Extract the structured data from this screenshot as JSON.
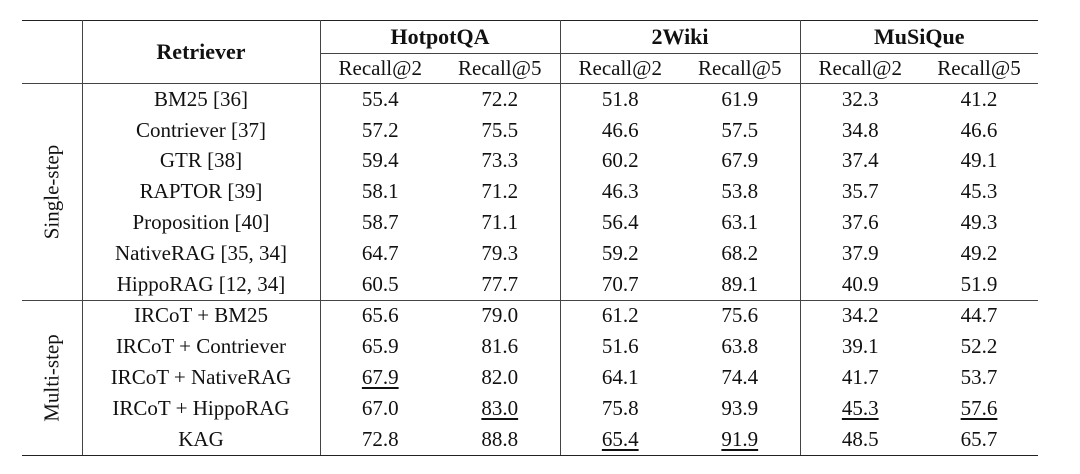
{
  "table": {
    "retriever_header": "Retriever",
    "datasets": [
      "HotpotQA",
      "2Wiki",
      "MuSiQue"
    ],
    "metrics": [
      "Recall@2",
      "Recall@5",
      "Recall@2",
      "Recall@5",
      "Recall@2",
      "Recall@5"
    ],
    "groups": [
      {
        "label": "Single-step",
        "rows": [
          {
            "method": "BM25 [36]",
            "values": [
              "55.4",
              "72.2",
              "51.8",
              "61.9",
              "32.3",
              "41.2"
            ],
            "bold": [],
            "underline": []
          },
          {
            "method": "Contriever [37]",
            "values": [
              "57.2",
              "75.5",
              "46.6",
              "57.5",
              "34.8",
              "46.6"
            ],
            "bold": [],
            "underline": []
          },
          {
            "method": "GTR [38]",
            "values": [
              "59.4",
              "73.3",
              "60.2",
              "67.9",
              "37.4",
              "49.1"
            ],
            "bold": [],
            "underline": []
          },
          {
            "method": "RAPTOR [39]",
            "values": [
              "58.1",
              "71.2",
              "46.3",
              "53.8",
              "35.7",
              "45.3"
            ],
            "bold": [],
            "underline": []
          },
          {
            "method": "Proposition [40]",
            "values": [
              "58.7",
              "71.1",
              "56.4",
              "63.1",
              "37.6",
              "49.3"
            ],
            "bold": [],
            "underline": []
          },
          {
            "method": "NativeRAG [35, 34]",
            "values": [
              "64.7",
              "79.3",
              "59.2",
              "68.2",
              "37.9",
              "49.2"
            ],
            "bold": [],
            "underline": []
          },
          {
            "method": "HippoRAG [12, 34]",
            "values": [
              "60.5",
              "77.7",
              "70.7",
              "89.1",
              "40.9",
              "51.9"
            ],
            "bold": [],
            "underline": []
          }
        ]
      },
      {
        "label": "Multi-step",
        "rows": [
          {
            "method": "IRCoT + BM25",
            "values": [
              "65.6",
              "79.0",
              "61.2",
              "75.6",
              "34.2",
              "44.7"
            ],
            "bold": [],
            "underline": []
          },
          {
            "method": "IRCoT + Contriever",
            "values": [
              "65.9",
              "81.6",
              "51.6",
              "63.8",
              "39.1",
              "52.2"
            ],
            "bold": [],
            "underline": []
          },
          {
            "method": "IRCoT + NativeRAG",
            "values": [
              "67.9",
              "82.0",
              "64.1",
              "74.4",
              "41.7",
              "53.7"
            ],
            "bold": [],
            "underline": [
              0
            ]
          },
          {
            "method": "IRCoT + HippoRAG",
            "values": [
              "67.0",
              "83.0",
              "75.8",
              "93.9",
              "45.3",
              "57.6"
            ],
            "bold": [
              2,
              3
            ],
            "underline": [
              1,
              4,
              5
            ]
          },
          {
            "method": "KAG",
            "method_bold": true,
            "values": [
              "72.8",
              "88.8",
              "65.4",
              "91.9",
              "48.5",
              "65.7"
            ],
            "bold": [
              0,
              1,
              4,
              5
            ],
            "underline": [
              2,
              3
            ]
          }
        ]
      }
    ]
  }
}
